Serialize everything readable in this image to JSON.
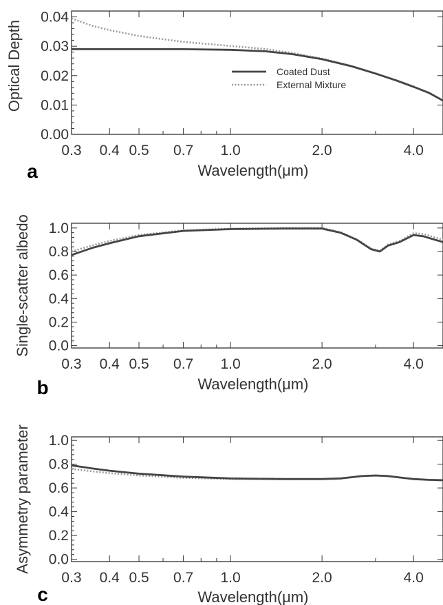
{
  "chart_data": [
    {
      "type": "line",
      "panel_label": "a",
      "xlabel": "Wavelength(μm)",
      "ylabel": "Optical Depth",
      "x_scale": "log",
      "xlim": [
        0.3,
        5.0
      ],
      "ylim": [
        0.0,
        0.042
      ],
      "x_ticks": [
        0.3,
        0.4,
        0.5,
        0.7,
        1.0,
        2.0,
        4.0
      ],
      "x_tick_labels": [
        "0.3",
        "0.4",
        "0.5",
        "0.7",
        "1.0",
        "2.0",
        "4.0"
      ],
      "y_ticks": [
        0.0,
        0.01,
        0.02,
        0.03,
        0.04
      ],
      "y_tick_labels": [
        "0.00",
        "0.01",
        "0.02",
        "0.03",
        "0.04"
      ],
      "legend": {
        "position": "center-right",
        "entries": [
          "Coated Dust",
          "External Mixture"
        ]
      },
      "series": [
        {
          "name": "Coated Dust",
          "style": "solid",
          "color": "#444444",
          "x": [
            0.3,
            0.4,
            0.5,
            0.7,
            1.0,
            1.3,
            1.6,
            2.0,
            2.5,
            3.0,
            3.5,
            4.0,
            4.5,
            5.0
          ],
          "y": [
            0.029,
            0.029,
            0.029,
            0.029,
            0.0288,
            0.0283,
            0.0273,
            0.0256,
            0.0232,
            0.0207,
            0.0184,
            0.0162,
            0.0141,
            0.0115
          ]
        },
        {
          "name": "External Mixture",
          "style": "dotted",
          "color": "#999999",
          "x": [
            0.3,
            0.35,
            0.4,
            0.5,
            0.7,
            1.0,
            1.3,
            1.6,
            2.0,
            2.5,
            3.0,
            3.5,
            4.0,
            4.5,
            5.0
          ],
          "y": [
            0.0395,
            0.037,
            0.0355,
            0.0335,
            0.0315,
            0.0301,
            0.0291,
            0.0277,
            0.0258,
            0.0233,
            0.0208,
            0.0185,
            0.0163,
            0.0142,
            0.0115
          ]
        }
      ]
    },
    {
      "type": "line",
      "panel_label": "b",
      "xlabel": "Wavelength(μm)",
      "ylabel": "Single-scatter albedo",
      "x_scale": "log",
      "xlim": [
        0.3,
        5.0
      ],
      "ylim": [
        -0.02,
        1.04
      ],
      "x_ticks": [
        0.3,
        0.4,
        0.5,
        0.7,
        1.0,
        2.0,
        4.0
      ],
      "x_tick_labels": [
        "0.3",
        "0.4",
        "0.5",
        "0.7",
        "1.0",
        "2.0",
        "4.0"
      ],
      "y_ticks": [
        0.0,
        0.2,
        0.4,
        0.6,
        0.8,
        1.0
      ],
      "y_tick_labels": [
        "0.0",
        "0.2",
        "0.4",
        "0.6",
        "0.8",
        "1.0"
      ],
      "series": [
        {
          "name": "Coated Dust",
          "style": "solid",
          "color": "#444444",
          "x": [
            0.3,
            0.35,
            0.4,
            0.5,
            0.7,
            1.0,
            1.5,
            2.0,
            2.3,
            2.6,
            2.9,
            3.1,
            3.3,
            3.6,
            4.0,
            4.3,
            4.7,
            5.0
          ],
          "y": [
            0.77,
            0.83,
            0.87,
            0.93,
            0.975,
            0.99,
            0.995,
            0.995,
            0.96,
            0.9,
            0.82,
            0.8,
            0.85,
            0.88,
            0.94,
            0.93,
            0.9,
            0.88
          ]
        },
        {
          "name": "External Mixture",
          "style": "dotted",
          "color": "#999999",
          "x": [
            0.3,
            0.35,
            0.4,
            0.5,
            0.7,
            1.0,
            1.5,
            2.0,
            2.3,
            2.6,
            2.9,
            3.1,
            3.3,
            3.6,
            4.0,
            4.3,
            4.7,
            5.0
          ],
          "y": [
            0.8,
            0.85,
            0.89,
            0.94,
            0.98,
            0.995,
            1.0,
            1.0,
            0.965,
            0.905,
            0.825,
            0.805,
            0.86,
            0.89,
            0.955,
            0.95,
            0.92,
            0.9
          ]
        }
      ]
    },
    {
      "type": "line",
      "panel_label": "c",
      "xlabel": "Wavelength(μm)",
      "ylabel": "Asymmetry parameter",
      "x_scale": "log",
      "xlim": [
        0.3,
        5.0
      ],
      "ylim": [
        -0.02,
        1.03
      ],
      "x_ticks": [
        0.3,
        0.4,
        0.5,
        0.7,
        1.0,
        2.0,
        4.0
      ],
      "x_tick_labels": [
        "0.3",
        "0.4",
        "0.5",
        "0.7",
        "1.0",
        "2.0",
        "4.0"
      ],
      "y_ticks": [
        0.0,
        0.2,
        0.4,
        0.6,
        0.8,
        1.0
      ],
      "y_tick_labels": [
        "0.0",
        "0.2",
        "0.4",
        "0.6",
        "0.8",
        "1.0"
      ],
      "series": [
        {
          "name": "Coated Dust",
          "style": "solid",
          "color": "#444444",
          "x": [
            0.3,
            0.35,
            0.4,
            0.5,
            0.7,
            1.0,
            1.5,
            2.0,
            2.3,
            2.7,
            3.0,
            3.3,
            3.7,
            4.0,
            4.5,
            5.0
          ],
          "y": [
            0.79,
            0.765,
            0.745,
            0.72,
            0.695,
            0.68,
            0.675,
            0.675,
            0.68,
            0.7,
            0.705,
            0.7,
            0.685,
            0.675,
            0.668,
            0.665
          ]
        },
        {
          "name": "External Mixture",
          "style": "dotted",
          "color": "#999999",
          "x": [
            0.3,
            0.35,
            0.4,
            0.5,
            0.7,
            1.0,
            1.5,
            2.0,
            2.3,
            2.7,
            3.0,
            3.3,
            3.7,
            4.0,
            4.5,
            5.0
          ],
          "y": [
            0.76,
            0.74,
            0.725,
            0.705,
            0.685,
            0.675,
            0.672,
            0.673,
            0.678,
            0.698,
            0.703,
            0.698,
            0.683,
            0.673,
            0.666,
            0.663
          ]
        }
      ]
    }
  ]
}
